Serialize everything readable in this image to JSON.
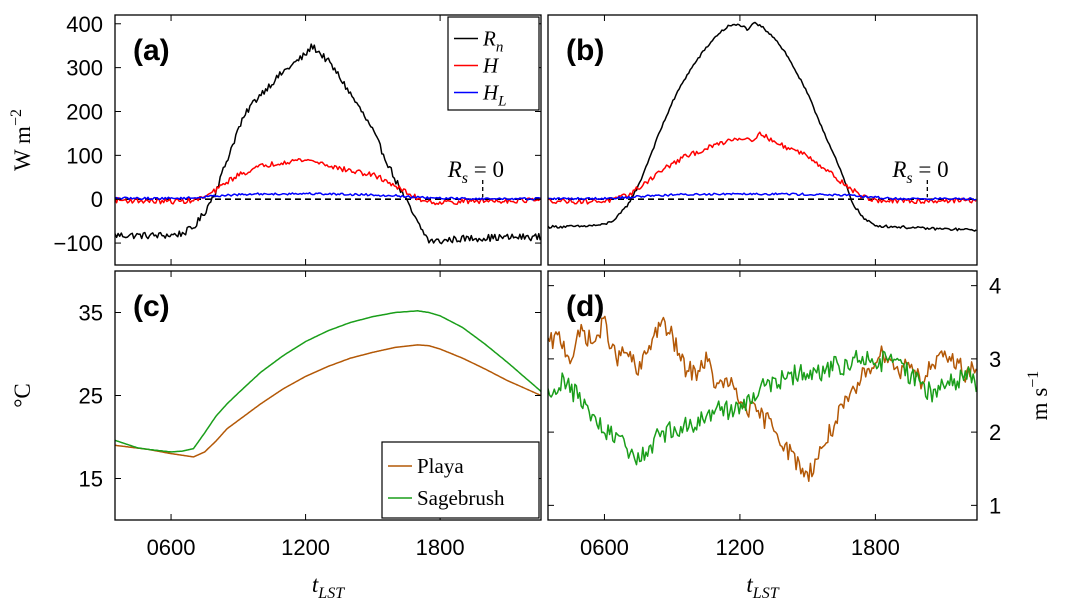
{
  "chart_data": [
    {
      "panel": "(a)",
      "type": "line",
      "ylabel": "W m",
      "ylabel_sup": "−2",
      "x_ticks": [
        "0600",
        "1200",
        "1800"
      ],
      "x_tick_values": [
        6,
        12,
        18
      ],
      "xlim": [
        3.5,
        22.5
      ],
      "ylim": [
        -150,
        420
      ],
      "y_ticks": [
        -100,
        0,
        100,
        200,
        300,
        400
      ],
      "y_tick_labels": [
        "−100",
        "0",
        "100",
        "200",
        "300",
        "400"
      ],
      "legend": {
        "placement": "top-right",
        "entries": [
          {
            "main": "R",
            "sub": "n",
            "color": "#000000"
          },
          {
            "main": "H",
            "sub": "",
            "color": "#ff0000"
          },
          {
            "main": "H",
            "sub": "L",
            "color": "#0000ff"
          }
        ]
      },
      "annotation": {
        "main": "R",
        "sub": "s",
        "rest": " = 0",
        "x": 19.9
      },
      "zero_line": true,
      "series": [
        {
          "name": "R_n",
          "color": "#000000",
          "x": [
            3.5,
            5,
            6,
            6.5,
            7,
            7.5,
            8,
            8.5,
            9,
            9.5,
            10,
            10.5,
            11,
            11.5,
            12,
            12.3,
            12.6,
            13,
            13.5,
            14,
            14.5,
            15,
            15.5,
            16,
            16.5,
            17,
            17.5,
            18,
            18.5,
            19,
            20,
            21,
            22.5
          ],
          "y": [
            -82,
            -83,
            -82,
            -78,
            -65,
            -30,
            20,
            90,
            160,
            210,
            240,
            265,
            290,
            310,
            330,
            350,
            335,
            315,
            280,
            240,
            200,
            155,
            100,
            45,
            -5,
            -55,
            -95,
            -96,
            -92,
            -90,
            -88,
            -87,
            -86
          ],
          "noise": 8
        },
        {
          "name": "H",
          "color": "#ff0000",
          "x": [
            3.5,
            5,
            6,
            7,
            7.5,
            8,
            8.5,
            9,
            9.5,
            10,
            10.5,
            11,
            11.5,
            12,
            12.5,
            13,
            13.5,
            14,
            14.5,
            15,
            15.5,
            16,
            16.5,
            17,
            17.5,
            18,
            19,
            20,
            21,
            22.5
          ],
          "y": [
            -2,
            -4,
            -5,
            -3,
            5,
            20,
            40,
            55,
            65,
            75,
            80,
            85,
            88,
            90,
            85,
            78,
            70,
            65,
            60,
            55,
            45,
            30,
            15,
            2,
            -5,
            -8,
            -5,
            -4,
            -3,
            -2
          ],
          "noise": 6
        },
        {
          "name": "H_L",
          "color": "#0000ff",
          "x": [
            3.5,
            6,
            7,
            7.5,
            8,
            9,
            10,
            11,
            12,
            13,
            14,
            15,
            16,
            16.5,
            17,
            18,
            20,
            22.5
          ],
          "y": [
            2,
            2,
            3,
            5,
            8,
            10,
            12,
            12,
            13,
            12,
            11,
            10,
            8,
            6,
            4,
            2,
            1,
            1
          ],
          "noise": 2.5
        }
      ]
    },
    {
      "panel": "(b)",
      "type": "line",
      "x_ticks": [
        "0600",
        "1200",
        "1800"
      ],
      "x_tick_values": [
        6,
        12,
        18
      ],
      "xlim": [
        3.5,
        22.5
      ],
      "ylim": [
        -150,
        420
      ],
      "annotation": {
        "main": "R",
        "sub": "s",
        "rest": " = 0",
        "x": 20.3
      },
      "zero_line": true,
      "series": [
        {
          "name": "R_n",
          "color": "#000000",
          "x": [
            3.5,
            5,
            6,
            6.5,
            7,
            7.5,
            8,
            8.5,
            9,
            9.5,
            10,
            10.5,
            11,
            11.5,
            12,
            12.4,
            12.6,
            12.8,
            13,
            13.5,
            14,
            14.5,
            15,
            15.5,
            16,
            16.5,
            17,
            17.5,
            18,
            18.5,
            19,
            20,
            21,
            22.5
          ],
          "y": [
            -63,
            -62,
            -58,
            -45,
            -15,
            30,
            95,
            160,
            220,
            270,
            310,
            345,
            375,
            395,
            398,
            385,
            402,
            398,
            392,
            370,
            335,
            290,
            240,
            180,
            120,
            60,
            -10,
            -45,
            -60,
            -62,
            -63,
            -66,
            -68,
            -70
          ],
          "noise": 3
        },
        {
          "name": "H",
          "color": "#ff0000",
          "x": [
            3.5,
            5,
            6,
            6.5,
            7,
            7.5,
            8,
            8.5,
            9,
            9.5,
            10,
            10.5,
            11,
            11.5,
            12,
            12.5,
            13,
            13.5,
            14,
            14.5,
            15,
            15.5,
            16,
            16.5,
            17,
            17.5,
            18,
            19,
            20,
            21,
            22.5
          ],
          "y": [
            -3,
            -5,
            -4,
            0,
            8,
            25,
            45,
            65,
            80,
            95,
            105,
            115,
            125,
            135,
            140,
            137,
            150,
            130,
            120,
            110,
            100,
            80,
            60,
            40,
            20,
            5,
            -2,
            -5,
            -4,
            -3,
            -3
          ],
          "noise": 6
        },
        {
          "name": "H_L",
          "color": "#0000ff",
          "x": [
            3.5,
            6,
            7,
            8,
            9,
            10,
            11,
            12,
            13,
            14,
            15,
            16,
            17,
            18,
            19,
            22.5
          ],
          "y": [
            1,
            2,
            4,
            8,
            10,
            11,
            12,
            13,
            12,
            12,
            11,
            10,
            8,
            4,
            1,
            1
          ],
          "noise": 2.5
        }
      ]
    },
    {
      "panel": "(c)",
      "type": "line",
      "ylabel": "°C",
      "x_ticks": [
        "0600",
        "1200",
        "1800"
      ],
      "x_tick_values": [
        6,
        12,
        18
      ],
      "xlabel_main": "t",
      "xlabel_sub": "LST",
      "xlim": [
        3.5,
        22.5
      ],
      "ylim": [
        10,
        40
      ],
      "y_ticks": [
        15,
        25,
        35
      ],
      "y_tick_labels": [
        "15",
        "25",
        "35"
      ],
      "legend": {
        "placement": "bottom-right",
        "entries": [
          {
            "main": "Playa",
            "color": "#b35806"
          },
          {
            "main": "Sagebrush",
            "color": "#1a9e1a"
          }
        ]
      },
      "series": [
        {
          "name": "Playa",
          "color": "#b35806",
          "x": [
            3.5,
            5,
            6,
            6.5,
            7,
            7.5,
            8,
            8.5,
            9,
            10,
            11,
            12,
            13,
            14,
            15,
            16,
            17,
            17.5,
            18,
            19,
            20,
            21,
            22.5
          ],
          "y": [
            19,
            18.5,
            18,
            17.8,
            17.6,
            18.2,
            19.5,
            21,
            22,
            24,
            25.8,
            27.3,
            28.5,
            29.5,
            30.2,
            30.8,
            31.1,
            31,
            30.6,
            29.5,
            28.2,
            26.8,
            25
          ]
        },
        {
          "name": "Sagebrush",
          "color": "#1a9e1a",
          "x": [
            3.5,
            4.5,
            5,
            6,
            6.5,
            7,
            7.5,
            8,
            8.5,
            9,
            10,
            11,
            12,
            13,
            14,
            15,
            16,
            17,
            17.5,
            18,
            19,
            20,
            21,
            22.5
          ],
          "y": [
            19.6,
            18.7,
            18.5,
            18.2,
            18.3,
            18.6,
            20.5,
            22.5,
            24,
            25.3,
            27.8,
            29.8,
            31.5,
            32.8,
            33.8,
            34.5,
            35,
            35.2,
            35,
            34.6,
            33.2,
            31.2,
            29,
            25.5
          ]
        }
      ]
    },
    {
      "panel": "(d)",
      "type": "line",
      "ylabel": "m s",
      "ylabel_sup": "−1",
      "x_ticks": [
        "0600",
        "1200",
        "1800"
      ],
      "x_tick_values": [
        6,
        12,
        18
      ],
      "xlabel_main": "t",
      "xlabel_sub": "LST",
      "xlim": [
        3.5,
        22.5
      ],
      "ylim": [
        0.8,
        4.2
      ],
      "y_ticks": [
        1,
        2,
        3,
        4
      ],
      "y_tick_labels": [
        "1",
        "2",
        "3",
        "4"
      ],
      "series": [
        {
          "name": "Playa",
          "color": "#b35806",
          "x": [
            3.5,
            4,
            4.5,
            5,
            5.5,
            6,
            6.5,
            7,
            7.5,
            8,
            8.5,
            9,
            9.5,
            10,
            10.5,
            11,
            11.5,
            12,
            12.5,
            13,
            13.5,
            14,
            14.5,
            15,
            15.5,
            16,
            16.5,
            17,
            17.5,
            18,
            18.5,
            19,
            19.5,
            20,
            20.5,
            21,
            21.5,
            22,
            22.5
          ],
          "y": [
            3.2,
            3.3,
            3.0,
            3.4,
            3.2,
            3.5,
            3.0,
            3.1,
            2.8,
            3.2,
            3.5,
            3.3,
            2.9,
            2.8,
            3.0,
            2.6,
            2.7,
            2.4,
            2.3,
            2.2,
            2.1,
            1.8,
            1.6,
            1.4,
            1.7,
            2.0,
            2.3,
            2.5,
            2.8,
            3.0,
            3.1,
            2.8,
            3.0,
            2.7,
            2.9,
            3.0,
            3.0,
            2.8,
            2.9
          ],
          "noise": 0.13
        },
        {
          "name": "Sagebrush",
          "color": "#1a9e1a",
          "x": [
            3.5,
            4,
            4.5,
            5,
            5.5,
            6,
            6.5,
            7,
            7.5,
            8,
            8.5,
            9,
            9.5,
            10,
            10.5,
            11,
            11.5,
            12,
            12.5,
            13,
            13.5,
            14,
            14.5,
            15,
            15.5,
            16,
            16.5,
            17,
            17.5,
            18,
            18.5,
            19,
            19.5,
            20,
            20.5,
            21,
            21.5,
            22,
            22.5
          ],
          "y": [
            2.5,
            2.7,
            2.6,
            2.4,
            2.2,
            2.0,
            1.9,
            1.8,
            1.6,
            1.8,
            2.0,
            2.0,
            2.1,
            2.1,
            2.2,
            2.4,
            2.3,
            2.3,
            2.5,
            2.6,
            2.7,
            2.7,
            2.8,
            2.8,
            2.8,
            2.9,
            2.9,
            3.0,
            3.0,
            2.9,
            3.0,
            2.9,
            2.8,
            2.7,
            2.5,
            2.6,
            2.7,
            2.8,
            2.6
          ],
          "noise": 0.14
        }
      ]
    }
  ]
}
